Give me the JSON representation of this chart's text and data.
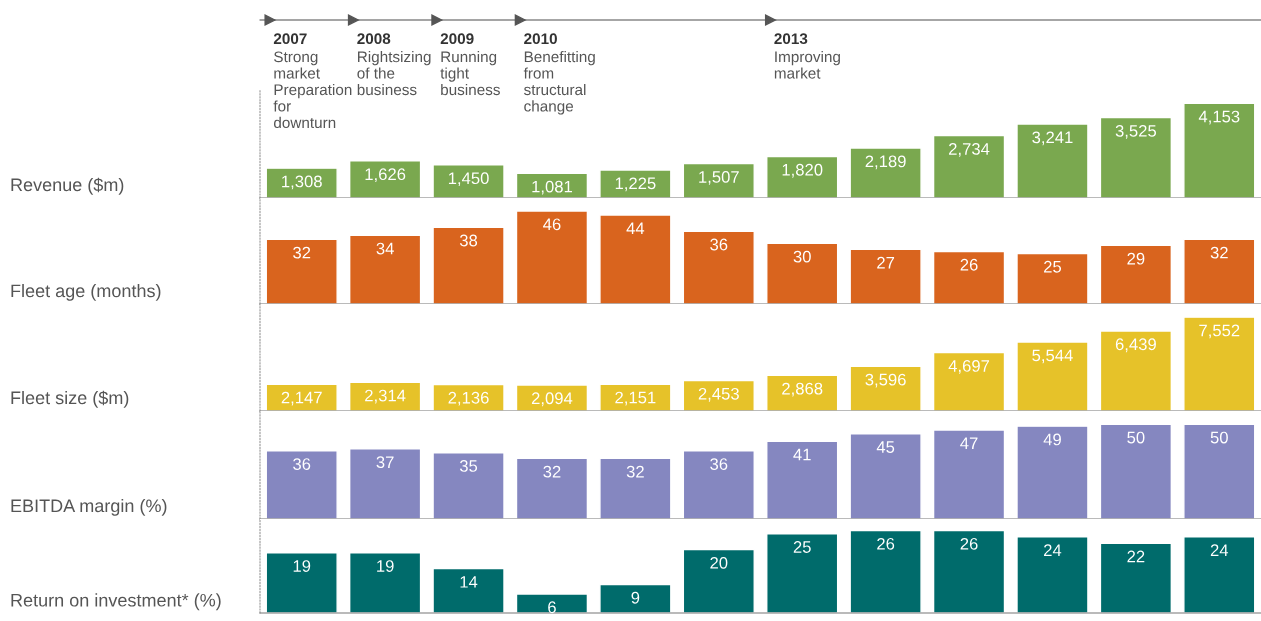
{
  "chart_data": [
    {
      "type": "bar",
      "ylabel": "Revenue ($m)",
      "categories": [
        "2007",
        "2008",
        "2009",
        "2010",
        null,
        null,
        "2013",
        null,
        null,
        null,
        null,
        null
      ],
      "values": [
        1308,
        1626,
        1450,
        1081,
        1225,
        1507,
        1820,
        2189,
        2734,
        3241,
        3525,
        4153
      ],
      "color": "#7aa84f",
      "value_labels": [
        "1,308",
        "1,626",
        "1,450",
        "1,081",
        "1,225",
        "1,507",
        "1,820",
        "2,189",
        "2,734",
        "3,241",
        "3,525",
        "4,153"
      ],
      "annotations": [
        "Strong\nmarket\nPreparation\nfor\ndownturn",
        "Rightsizing\nof the\nbusiness",
        "Running\ntight\nbusiness",
        "Benefitting\nfrom\nstructural\nchange",
        "Improving\nmarket"
      ]
    },
    {
      "type": "bar",
      "ylabel": "Fleet age (months)",
      "categories": [
        null,
        null,
        null,
        null,
        null,
        null,
        null,
        null,
        null,
        null,
        null,
        null
      ],
      "values": [
        32,
        34,
        38,
        46,
        44,
        36,
        30,
        27,
        26,
        25,
        29,
        32
      ],
      "color": "#d9641e",
      "data_labels": true
    },
    {
      "type": "bar",
      "ylabel": "Fleet size ($m)",
      "categories": [
        null,
        null,
        null,
        null,
        null,
        null,
        null,
        null,
        null,
        null,
        null,
        null
      ],
      "values": [
        2147,
        2314,
        2136,
        2094,
        2151,
        2453,
        2868,
        3596,
        4697,
        5544,
        6439,
        7552
      ],
      "color": "#e6c229",
      "value_labels": [
        "2,147",
        "2,314",
        "2,136",
        "2,094",
        "2,151",
        "2,453",
        "2,868",
        "3,596",
        "4,697",
        "5,544",
        "6,439",
        "7,552"
      ]
    },
    {
      "type": "bar",
      "ylabel": "EBITDA margin (%)",
      "categories": [
        null,
        null,
        null,
        null,
        null,
        null,
        null,
        null,
        null,
        null,
        null,
        null
      ],
      "values": [
        36,
        37,
        35,
        32,
        32,
        36,
        41,
        45,
        47,
        49,
        50,
        50
      ],
      "color": "#8587c0",
      "data_labels": true
    },
    {
      "type": "bar",
      "ylabel": "Return on investment* (%)",
      "categories": [
        null,
        null,
        null,
        null,
        null,
        null,
        null,
        null,
        null,
        null,
        null,
        null
      ],
      "values": [
        19,
        19,
        14,
        6,
        9,
        20,
        25,
        26,
        26,
        24,
        22,
        24
      ],
      "color": "#006b6b",
      "data_labels": true
    }
  ]
}
